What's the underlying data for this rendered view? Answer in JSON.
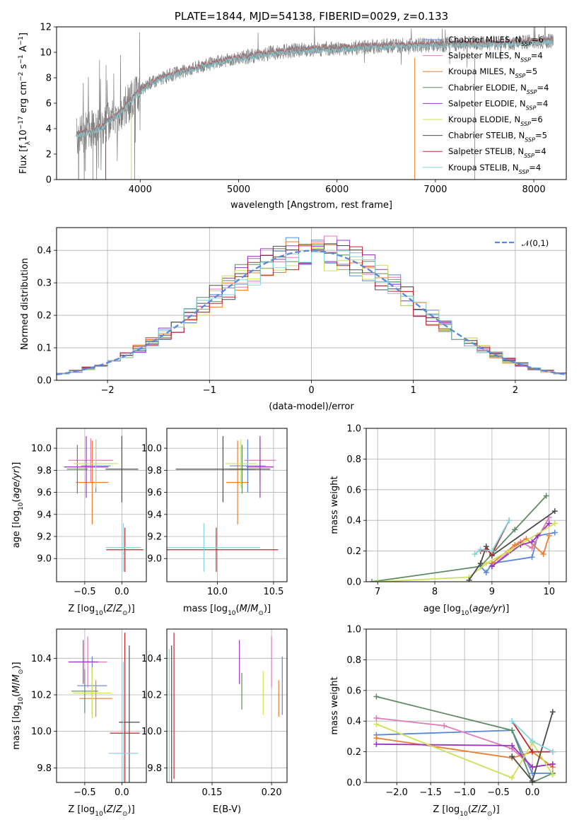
{
  "colors": {
    "Chabrier MILES": "#5b88d9",
    "Salpeter MILES": "#e07bb9",
    "Kroupa MILES": "#ee7f2c",
    "Chabrier ELODIE": "#5e8b63",
    "Salpeter ELODIE": "#9a36bd",
    "Kroupa ELODIE": "#cfe05a",
    "Chabrier STELIB": "#4b4b4b",
    "Salpeter STELIB": "#c0262b",
    "Kroupa STELIB": "#84d5dd",
    "data": "#808080",
    "normal": "#5b88d9"
  },
  "chart_data": [
    {
      "type": "line",
      "title": "PLATE=1844, MJD=54138, FIBERID=0029, z=0.133",
      "xlabel": "wavelength [Angstrom, rest frame]",
      "ylabel": "Flux [f_λ 10^-17 erg cm^-2 s^-1 A^-1]",
      "xlim": [
        3150,
        8330
      ],
      "ylim": [
        0,
        12
      ],
      "xticks": [
        4000,
        5000,
        6000,
        7000,
        8000
      ],
      "yticks": [
        0,
        2,
        4,
        6,
        8,
        10,
        12
      ],
      "legend": [
        {
          "base": "Chabrier MILES, N",
          "sub": "SSP",
          "tail": "=6"
        },
        {
          "base": "Salpeter MILES, N",
          "sub": "SSP",
          "tail": "=4"
        },
        {
          "base": "Kroupa MILES, N",
          "sub": "SSP",
          "tail": "=5"
        },
        {
          "base": "Chabrier ELODIE, N",
          "sub": "SSP",
          "tail": "=4"
        },
        {
          "base": "Salpeter ELODIE, N",
          "sub": "SSP",
          "tail": "=4"
        },
        {
          "base": "Kroupa ELODIE, N",
          "sub": "SSP",
          "tail": "=6"
        },
        {
          "base": "Chabrier STELIB, N",
          "sub": "SSP",
          "tail": "=5"
        },
        {
          "base": "Salpeter STELIB, N",
          "sub": "SSP",
          "tail": "=4"
        },
        {
          "base": "Kroupa STELIB, N",
          "sub": "SSP",
          "tail": "=4"
        }
      ],
      "legend_loc": "upper right",
      "continuum": {
        "x": [
          3350,
          3600,
          3800,
          3950,
          4100,
          4300,
          4600,
          4900,
          5200,
          5600,
          6000,
          6500,
          7000,
          7500,
          8000,
          8200
        ],
        "y": [
          3.5,
          4.1,
          5.3,
          6.6,
          7.6,
          8.2,
          8.9,
          9.4,
          9.8,
          10.2,
          10.3,
          10.5,
          10.6,
          10.7,
          10.8,
          10.9
        ]
      },
      "grid": false
    },
    {
      "type": "step",
      "xlabel": "(data-model)/error",
      "ylabel": "Normed distribution",
      "xlim": [
        -2.5,
        2.5
      ],
      "ylim": [
        0,
        0.47
      ],
      "xticks": [
        -2,
        -1,
        0,
        1,
        2
      ],
      "yticks": [
        0.0,
        0.1,
        0.2,
        0.3,
        0.4
      ],
      "legend": [
        "𝒩(0,1)"
      ],
      "legend_loc": "upper right",
      "bins": 40,
      "grid": true
    },
    {
      "type": "errorbar",
      "xlabel": "Z [log10(Z/Z⊙)]",
      "ylabel": "age [log10(age/yr)]",
      "xlim": [
        -0.88,
        0.33
      ],
      "ylim": [
        8.79,
        10.18
      ],
      "xticks": [
        -0.5,
        0.0
      ],
      "yticks": [
        9.0,
        9.2,
        9.4,
        9.6,
        9.8,
        10.0
      ],
      "grid": true,
      "points": [
        {
          "model": "Chabrier MILES",
          "x": -0.35,
          "xerr": 0.2,
          "y": 9.84,
          "yerr": 0.24
        },
        {
          "model": "Salpeter MILES",
          "x": -0.42,
          "xerr": 0.3,
          "y": 9.89,
          "yerr": 0.2
        },
        {
          "model": "Kroupa MILES",
          "x": -0.4,
          "xerr": 0.22,
          "y": 9.69,
          "yerr": 0.38
        },
        {
          "model": "Chabrier ELODIE",
          "x": -0.6,
          "xerr": 0.14,
          "y": 9.81,
          "yerr": 0.22
        },
        {
          "model": "Salpeter ELODIE",
          "x": -0.48,
          "xerr": 0.3,
          "y": 9.83,
          "yerr": 0.28
        },
        {
          "model": "Kroupa ELODIE",
          "x": -0.35,
          "xerr": 0.3,
          "y": 9.86,
          "yerr": 0.22
        },
        {
          "model": "Chabrier STELIB",
          "x": 0.0,
          "xerr": 0.22,
          "y": 9.81,
          "yerr": 0.3
        },
        {
          "model": "Salpeter STELIB",
          "x": 0.04,
          "xerr": 0.25,
          "y": 9.08,
          "yerr": 0.2
        },
        {
          "model": "Kroupa STELIB",
          "x": 0.02,
          "xerr": 0.24,
          "y": 9.1,
          "yerr": 0.22
        }
      ]
    },
    {
      "type": "errorbar",
      "xlabel": "mass [log10(M/M⊙)]",
      "ylabel": "",
      "xlim": [
        9.55,
        10.62
      ],
      "ylim": [
        8.79,
        10.18
      ],
      "xticks": [
        9.5,
        10.0,
        10.5
      ],
      "yticks": [
        9.0,
        9.2,
        9.4,
        9.6,
        9.8,
        10.0
      ],
      "grid": true,
      "points": [
        {
          "model": "Chabrier MILES",
          "x": 10.27,
          "xerr": 0.16,
          "y": 9.84,
          "yerr": 0.24
        },
        {
          "model": "Salpeter MILES",
          "x": 10.38,
          "xerr": 0.14,
          "y": 9.89,
          "yerr": 0.2
        },
        {
          "model": "Kroupa MILES",
          "x": 10.18,
          "xerr": 0.1,
          "y": 9.69,
          "yerr": 0.38
        },
        {
          "model": "Chabrier ELODIE",
          "x": 10.22,
          "xerr": 0.12,
          "y": 9.81,
          "yerr": 0.22
        },
        {
          "model": "Salpeter ELODIE",
          "x": 10.38,
          "xerr": 0.12,
          "y": 9.83,
          "yerr": 0.28
        },
        {
          "model": "Kroupa ELODIE",
          "x": 10.21,
          "xerr": 0.14,
          "y": 9.86,
          "yerr": 0.22
        },
        {
          "model": "Chabrier STELIB",
          "x": 10.05,
          "xerr": 0.42,
          "y": 9.81,
          "yerr": 0.3
        },
        {
          "model": "Salpeter STELIB",
          "x": 9.99,
          "xerr": 0.55,
          "y": 9.08,
          "yerr": 0.2
        },
        {
          "model": "Kroupa STELIB",
          "x": 9.88,
          "xerr": 0.5,
          "y": 9.1,
          "yerr": 0.22
        }
      ]
    },
    {
      "type": "line",
      "xlabel": "age [log10(age/yr)]",
      "ylabel": "mass weight",
      "xlim": [
        6.8,
        10.3
      ],
      "ylim": [
        0,
        1
      ],
      "xticks": [
        7,
        8,
        9,
        10
      ],
      "yticks": [
        0.0,
        0.2,
        0.4,
        0.6,
        0.8,
        1.0
      ],
      "grid": true,
      "series": [
        {
          "name": "Chabrier MILES",
          "x": [
            8.8,
            8.9,
            9.0,
            9.7,
            9.8,
            10.1
          ],
          "y": [
            0.1,
            0.06,
            0.12,
            0.16,
            0.3,
            0.32
          ]
        },
        {
          "name": "Salpeter MILES",
          "x": [
            9.0,
            9.5,
            9.7,
            10.0
          ],
          "y": [
            0.1,
            0.26,
            0.22,
            0.42
          ]
        },
        {
          "name": "Kroupa MILES",
          "x": [
            9.0,
            9.4,
            9.6,
            9.9,
            10.0
          ],
          "y": [
            0.12,
            0.24,
            0.28,
            0.18,
            0.3
          ]
        },
        {
          "name": "Chabrier ELODIE",
          "x": [
            6.9,
            8.8,
            9.4,
            9.95
          ],
          "y": [
            0.0,
            0.1,
            0.34,
            0.56
          ]
        },
        {
          "name": "Salpeter ELODIE",
          "x": [
            9.0,
            9.5,
            9.7,
            9.8,
            10.0
          ],
          "y": [
            0.1,
            0.24,
            0.26,
            0.3,
            0.38
          ]
        },
        {
          "name": "Kroupa ELODIE",
          "x": [
            7.0,
            8.6,
            8.9,
            9.3,
            10.1
          ],
          "y": [
            0.0,
            0.03,
            0.12,
            0.2,
            0.38
          ]
        },
        {
          "name": "Chabrier STELIB",
          "x": [
            8.6,
            8.8,
            8.9,
            9.0,
            10.1
          ],
          "y": [
            0.01,
            0.12,
            0.23,
            0.17,
            0.46
          ]
        },
        {
          "name": "Salpeter STELIB",
          "x": [
            8.8,
            8.9,
            9.0,
            9.3
          ],
          "y": [
            0.2,
            0.21,
            0.18,
            0.4
          ]
        },
        {
          "name": "Kroupa STELIB",
          "x": [
            8.7,
            8.8,
            9.0,
            9.3
          ],
          "y": [
            0.18,
            0.21,
            0.2,
            0.4
          ]
        }
      ]
    },
    {
      "type": "errorbar",
      "xlabel": "Z [log10(Z/Z⊙)]",
      "ylabel": "mass [log10(M/M⊙)]",
      "xlim": [
        -0.88,
        0.33
      ],
      "ylim": [
        9.72,
        10.56
      ],
      "xticks": [
        -0.5,
        0.0
      ],
      "yticks": [
        9.8,
        10.0,
        10.2,
        10.4
      ],
      "grid": true,
      "points": [
        {
          "model": "Chabrier MILES",
          "x": -0.4,
          "xerr": 0.2,
          "y": 10.25,
          "yerr": 0.16
        },
        {
          "model": "Salpeter MILES",
          "x": -0.46,
          "xerr": 0.26,
          "y": 10.38,
          "yerr": 0.14
        },
        {
          "model": "Kroupa MILES",
          "x": -0.35,
          "xerr": 0.22,
          "y": 10.18,
          "yerr": 0.1
        },
        {
          "model": "Chabrier ELODIE",
          "x": -0.5,
          "xerr": 0.18,
          "y": 10.22,
          "yerr": 0.12
        },
        {
          "model": "Salpeter ELODIE",
          "x": -0.52,
          "xerr": 0.2,
          "y": 10.38,
          "yerr": 0.12
        },
        {
          "model": "Kroupa ELODIE",
          "x": -0.4,
          "xerr": 0.26,
          "y": 10.21,
          "yerr": 0.14
        },
        {
          "model": "Chabrier STELIB",
          "x": 0.1,
          "xerr": 0.14,
          "y": 10.05,
          "yerr": 0.42
        },
        {
          "model": "Salpeter STELIB",
          "x": 0.04,
          "xerr": 0.2,
          "y": 9.99,
          "yerr": 0.55
        },
        {
          "model": "Kroupa STELIB",
          "x": 0.02,
          "xerr": 0.2,
          "y": 9.88,
          "yerr": 0.5
        }
      ]
    },
    {
      "type": "errorbar",
      "xlabel": "E(B-V)",
      "ylabel": "",
      "xlim": [
        0.112,
        0.213
      ],
      "ylim": [
        9.72,
        10.56
      ],
      "xticks": [
        0.15,
        0.2
      ],
      "yticks": [
        9.8,
        10.0,
        10.2,
        10.4
      ],
      "grid": true,
      "points": [
        {
          "model": "Chabrier MILES",
          "x": 0.209,
          "y": 10.25,
          "yerr": 0.16
        },
        {
          "model": "Salpeter MILES",
          "x": 0.2,
          "y": 10.38,
          "yerr": 0.14
        },
        {
          "model": "Kroupa MILES",
          "x": 0.206,
          "y": 10.18,
          "yerr": 0.1
        },
        {
          "model": "Chabrier ELODIE",
          "x": 0.175,
          "y": 10.22,
          "yerr": 0.1
        },
        {
          "model": "Salpeter ELODIE",
          "x": 0.173,
          "y": 10.38,
          "yerr": 0.12
        },
        {
          "model": "Kroupa ELODIE",
          "x": 0.193,
          "y": 10.21,
          "yerr": 0.12
        },
        {
          "model": "Chabrier STELIB",
          "x": 0.116,
          "y": 10.05,
          "yerr": 0.42
        },
        {
          "model": "Salpeter STELIB",
          "x": 0.118,
          "y": 10.14,
          "yerr": 0.4
        },
        {
          "model": "Kroupa STELIB",
          "x": 0.114,
          "y": 10.0,
          "yerr": 0.45
        }
      ]
    },
    {
      "type": "line",
      "xlabel": "Z [log10(Z/Z⊙)]",
      "ylabel": "mass weight",
      "xlim": [
        -2.45,
        0.5
      ],
      "ylim": [
        0,
        1
      ],
      "xticks": [
        -2.0,
        -1.5,
        -1.0,
        -0.5,
        0.0
      ],
      "yticks": [
        0.0,
        0.2,
        0.4,
        0.6,
        0.8,
        1.0
      ],
      "grid": true,
      "series": [
        {
          "name": "Chabrier MILES",
          "x": [
            -2.3,
            -0.3,
            0.0,
            0.3
          ],
          "y": [
            0.31,
            0.34,
            0.06,
            0.06
          ]
        },
        {
          "name": "Salpeter MILES",
          "x": [
            -2.3,
            -1.3,
            -0.3,
            0.0,
            0.3
          ],
          "y": [
            0.42,
            0.37,
            0.22,
            0.1,
            0.12
          ]
        },
        {
          "name": "Kroupa MILES",
          "x": [
            -2.3,
            -0.3,
            0.0,
            0.3
          ],
          "y": [
            0.29,
            0.16,
            0.2,
            0.1
          ]
        },
        {
          "name": "Chabrier ELODIE",
          "x": [
            -2.3,
            -0.3,
            0.0,
            0.3
          ],
          "y": [
            0.56,
            0.34,
            0.0,
            0.06
          ]
        },
        {
          "name": "Salpeter ELODIE",
          "x": [
            -2.3,
            -0.3,
            0.0,
            0.3
          ],
          "y": [
            0.25,
            0.24,
            0.1,
            0.12
          ]
        },
        {
          "name": "Kroupa ELODIE",
          "x": [
            -2.3,
            -0.3,
            0.0,
            0.3
          ],
          "y": [
            0.38,
            0.03,
            0.26,
            0.05
          ]
        },
        {
          "name": "Chabrier STELIB",
          "x": [
            -0.3,
            0.0,
            0.3
          ],
          "y": [
            0.17,
            0.01,
            0.46
          ]
        },
        {
          "name": "Salpeter STELIB",
          "x": [
            -0.3,
            0.0,
            0.3
          ],
          "y": [
            0.4,
            0.2,
            0.2
          ]
        },
        {
          "name": "Kroupa STELIB",
          "x": [
            -0.3,
            0.0,
            0.3
          ],
          "y": [
            0.4,
            0.27,
            0.2
          ]
        }
      ]
    }
  ]
}
